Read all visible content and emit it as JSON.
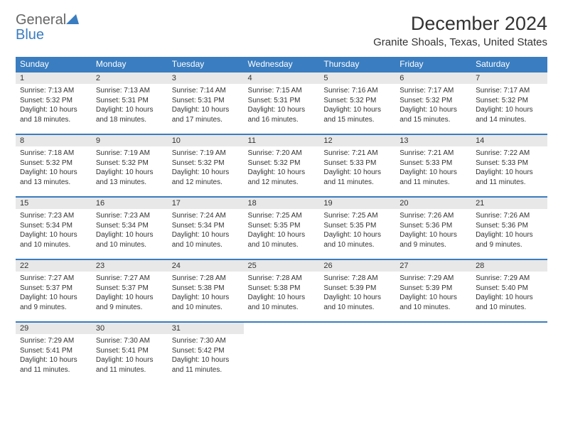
{
  "logo": {
    "text1": "General",
    "text2": "Blue"
  },
  "title": "December 2024",
  "location": "Granite Shoals, Texas, United States",
  "colors": {
    "header_bg": "#3a7dc0",
    "header_text": "#ffffff",
    "daynum_bg": "#e8e8e8",
    "row_border": "#3a7dc0",
    "text": "#333333",
    "background": "#ffffff"
  },
  "dayHeaders": [
    "Sunday",
    "Monday",
    "Tuesday",
    "Wednesday",
    "Thursday",
    "Friday",
    "Saturday"
  ],
  "weeks": [
    [
      {
        "n": "1",
        "sr": "Sunrise: 7:13 AM",
        "ss": "Sunset: 5:32 PM",
        "d1": "Daylight: 10 hours",
        "d2": "and 18 minutes."
      },
      {
        "n": "2",
        "sr": "Sunrise: 7:13 AM",
        "ss": "Sunset: 5:31 PM",
        "d1": "Daylight: 10 hours",
        "d2": "and 18 minutes."
      },
      {
        "n": "3",
        "sr": "Sunrise: 7:14 AM",
        "ss": "Sunset: 5:31 PM",
        "d1": "Daylight: 10 hours",
        "d2": "and 17 minutes."
      },
      {
        "n": "4",
        "sr": "Sunrise: 7:15 AM",
        "ss": "Sunset: 5:31 PM",
        "d1": "Daylight: 10 hours",
        "d2": "and 16 minutes."
      },
      {
        "n": "5",
        "sr": "Sunrise: 7:16 AM",
        "ss": "Sunset: 5:32 PM",
        "d1": "Daylight: 10 hours",
        "d2": "and 15 minutes."
      },
      {
        "n": "6",
        "sr": "Sunrise: 7:17 AM",
        "ss": "Sunset: 5:32 PM",
        "d1": "Daylight: 10 hours",
        "d2": "and 15 minutes."
      },
      {
        "n": "7",
        "sr": "Sunrise: 7:17 AM",
        "ss": "Sunset: 5:32 PM",
        "d1": "Daylight: 10 hours",
        "d2": "and 14 minutes."
      }
    ],
    [
      {
        "n": "8",
        "sr": "Sunrise: 7:18 AM",
        "ss": "Sunset: 5:32 PM",
        "d1": "Daylight: 10 hours",
        "d2": "and 13 minutes."
      },
      {
        "n": "9",
        "sr": "Sunrise: 7:19 AM",
        "ss": "Sunset: 5:32 PM",
        "d1": "Daylight: 10 hours",
        "d2": "and 13 minutes."
      },
      {
        "n": "10",
        "sr": "Sunrise: 7:19 AM",
        "ss": "Sunset: 5:32 PM",
        "d1": "Daylight: 10 hours",
        "d2": "and 12 minutes."
      },
      {
        "n": "11",
        "sr": "Sunrise: 7:20 AM",
        "ss": "Sunset: 5:32 PM",
        "d1": "Daylight: 10 hours",
        "d2": "and 12 minutes."
      },
      {
        "n": "12",
        "sr": "Sunrise: 7:21 AM",
        "ss": "Sunset: 5:33 PM",
        "d1": "Daylight: 10 hours",
        "d2": "and 11 minutes."
      },
      {
        "n": "13",
        "sr": "Sunrise: 7:21 AM",
        "ss": "Sunset: 5:33 PM",
        "d1": "Daylight: 10 hours",
        "d2": "and 11 minutes."
      },
      {
        "n": "14",
        "sr": "Sunrise: 7:22 AM",
        "ss": "Sunset: 5:33 PM",
        "d1": "Daylight: 10 hours",
        "d2": "and 11 minutes."
      }
    ],
    [
      {
        "n": "15",
        "sr": "Sunrise: 7:23 AM",
        "ss": "Sunset: 5:34 PM",
        "d1": "Daylight: 10 hours",
        "d2": "and 10 minutes."
      },
      {
        "n": "16",
        "sr": "Sunrise: 7:23 AM",
        "ss": "Sunset: 5:34 PM",
        "d1": "Daylight: 10 hours",
        "d2": "and 10 minutes."
      },
      {
        "n": "17",
        "sr": "Sunrise: 7:24 AM",
        "ss": "Sunset: 5:34 PM",
        "d1": "Daylight: 10 hours",
        "d2": "and 10 minutes."
      },
      {
        "n": "18",
        "sr": "Sunrise: 7:25 AM",
        "ss": "Sunset: 5:35 PM",
        "d1": "Daylight: 10 hours",
        "d2": "and 10 minutes."
      },
      {
        "n": "19",
        "sr": "Sunrise: 7:25 AM",
        "ss": "Sunset: 5:35 PM",
        "d1": "Daylight: 10 hours",
        "d2": "and 10 minutes."
      },
      {
        "n": "20",
        "sr": "Sunrise: 7:26 AM",
        "ss": "Sunset: 5:36 PM",
        "d1": "Daylight: 10 hours",
        "d2": "and 9 minutes."
      },
      {
        "n": "21",
        "sr": "Sunrise: 7:26 AM",
        "ss": "Sunset: 5:36 PM",
        "d1": "Daylight: 10 hours",
        "d2": "and 9 minutes."
      }
    ],
    [
      {
        "n": "22",
        "sr": "Sunrise: 7:27 AM",
        "ss": "Sunset: 5:37 PM",
        "d1": "Daylight: 10 hours",
        "d2": "and 9 minutes."
      },
      {
        "n": "23",
        "sr": "Sunrise: 7:27 AM",
        "ss": "Sunset: 5:37 PM",
        "d1": "Daylight: 10 hours",
        "d2": "and 9 minutes."
      },
      {
        "n": "24",
        "sr": "Sunrise: 7:28 AM",
        "ss": "Sunset: 5:38 PM",
        "d1": "Daylight: 10 hours",
        "d2": "and 10 minutes."
      },
      {
        "n": "25",
        "sr": "Sunrise: 7:28 AM",
        "ss": "Sunset: 5:38 PM",
        "d1": "Daylight: 10 hours",
        "d2": "and 10 minutes."
      },
      {
        "n": "26",
        "sr": "Sunrise: 7:28 AM",
        "ss": "Sunset: 5:39 PM",
        "d1": "Daylight: 10 hours",
        "d2": "and 10 minutes."
      },
      {
        "n": "27",
        "sr": "Sunrise: 7:29 AM",
        "ss": "Sunset: 5:39 PM",
        "d1": "Daylight: 10 hours",
        "d2": "and 10 minutes."
      },
      {
        "n": "28",
        "sr": "Sunrise: 7:29 AM",
        "ss": "Sunset: 5:40 PM",
        "d1": "Daylight: 10 hours",
        "d2": "and 10 minutes."
      }
    ],
    [
      {
        "n": "29",
        "sr": "Sunrise: 7:29 AM",
        "ss": "Sunset: 5:41 PM",
        "d1": "Daylight: 10 hours",
        "d2": "and 11 minutes."
      },
      {
        "n": "30",
        "sr": "Sunrise: 7:30 AM",
        "ss": "Sunset: 5:41 PM",
        "d1": "Daylight: 10 hours",
        "d2": "and 11 minutes."
      },
      {
        "n": "31",
        "sr": "Sunrise: 7:30 AM",
        "ss": "Sunset: 5:42 PM",
        "d1": "Daylight: 10 hours",
        "d2": "and 11 minutes."
      },
      null,
      null,
      null,
      null
    ]
  ]
}
